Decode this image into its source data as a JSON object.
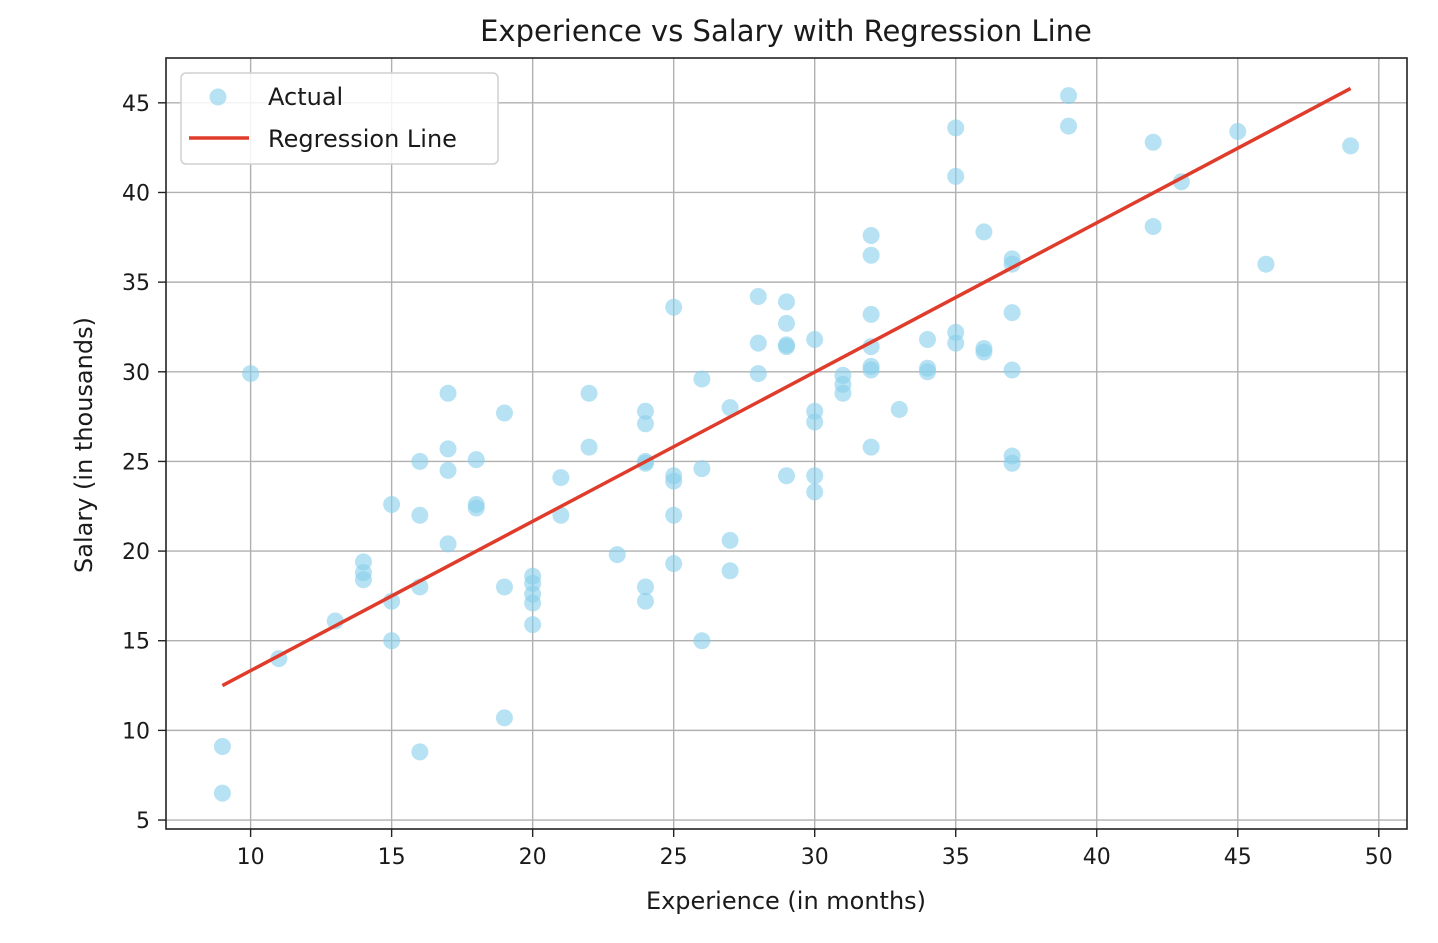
{
  "chart_data": {
    "type": "scatter",
    "title": "Experience vs Salary with Regression Line",
    "xlabel": "Experience (in months)",
    "ylabel": "Salary (in thousands)",
    "xlim": [
      7,
      51
    ],
    "ylim": [
      4.5,
      47.5
    ],
    "xticks": [
      10,
      15,
      20,
      25,
      30,
      35,
      40,
      45,
      50
    ],
    "yticks": [
      5,
      10,
      15,
      20,
      25,
      30,
      35,
      40,
      45
    ],
    "grid": true,
    "legend": {
      "placement": "top-left",
      "entries": [
        "Actual",
        "Regression Line"
      ]
    },
    "series": [
      {
        "name": "Actual",
        "kind": "scatter",
        "color": "#87ceeb",
        "points": [
          [
            9,
            9.1
          ],
          [
            9,
            6.5
          ],
          [
            10,
            29.9
          ],
          [
            11,
            14.0
          ],
          [
            13,
            16.1
          ],
          [
            14,
            19.4
          ],
          [
            14,
            18.8
          ],
          [
            14,
            18.4
          ],
          [
            15,
            22.6
          ],
          [
            15,
            17.2
          ],
          [
            15,
            15.0
          ],
          [
            16,
            25.0
          ],
          [
            16,
            22.0
          ],
          [
            16,
            18.0
          ],
          [
            16,
            8.8
          ],
          [
            17,
            28.8
          ],
          [
            17,
            25.7
          ],
          [
            17,
            24.5
          ],
          [
            17,
            20.4
          ],
          [
            18,
            25.1
          ],
          [
            18,
            22.6
          ],
          [
            18,
            22.4
          ],
          [
            19,
            27.7
          ],
          [
            19,
            18.0
          ],
          [
            19,
            10.7
          ],
          [
            20,
            18.6
          ],
          [
            20,
            18.2
          ],
          [
            20,
            17.6
          ],
          [
            20,
            17.1
          ],
          [
            20,
            15.9
          ],
          [
            21,
            24.1
          ],
          [
            21,
            22.0
          ],
          [
            22,
            28.8
          ],
          [
            22,
            25.8
          ],
          [
            23,
            19.8
          ],
          [
            24,
            27.8
          ],
          [
            24,
            27.1
          ],
          [
            24,
            25.0
          ],
          [
            24,
            24.9
          ],
          [
            24,
            18.0
          ],
          [
            24,
            17.2
          ],
          [
            25,
            33.6
          ],
          [
            25,
            24.2
          ],
          [
            25,
            23.9
          ],
          [
            25,
            22.0
          ],
          [
            25,
            19.3
          ],
          [
            26,
            29.6
          ],
          [
            26,
            24.6
          ],
          [
            26,
            15.0
          ],
          [
            27,
            28.0
          ],
          [
            27,
            20.6
          ],
          [
            27,
            18.9
          ],
          [
            28,
            34.2
          ],
          [
            28,
            31.6
          ],
          [
            28,
            29.9
          ],
          [
            29,
            33.9
          ],
          [
            29,
            32.7
          ],
          [
            29,
            31.5
          ],
          [
            29,
            31.4
          ],
          [
            29,
            24.2
          ],
          [
            30,
            31.8
          ],
          [
            30,
            27.8
          ],
          [
            30,
            27.2
          ],
          [
            30,
            24.2
          ],
          [
            30,
            23.3
          ],
          [
            31,
            29.8
          ],
          [
            31,
            29.3
          ],
          [
            31,
            28.8
          ],
          [
            32,
            37.6
          ],
          [
            32,
            36.5
          ],
          [
            32,
            33.2
          ],
          [
            32,
            31.4
          ],
          [
            32,
            30.3
          ],
          [
            32,
            30.1
          ],
          [
            32,
            25.8
          ],
          [
            33,
            27.9
          ],
          [
            34,
            31.8
          ],
          [
            34,
            30.2
          ],
          [
            34,
            30.0
          ],
          [
            35,
            43.6
          ],
          [
            35,
            40.9
          ],
          [
            35,
            32.2
          ],
          [
            35,
            31.6
          ],
          [
            36,
            37.8
          ],
          [
            36,
            31.3
          ],
          [
            36,
            31.1
          ],
          [
            37,
            36.3
          ],
          [
            37,
            36.0
          ],
          [
            37,
            33.3
          ],
          [
            37,
            30.1
          ],
          [
            37,
            25.3
          ],
          [
            37,
            24.9
          ],
          [
            39,
            45.4
          ],
          [
            39,
            43.7
          ],
          [
            42,
            42.8
          ],
          [
            42,
            38.1
          ],
          [
            43,
            40.6
          ],
          [
            45,
            43.4
          ],
          [
            46,
            36.0
          ],
          [
            49,
            42.6
          ]
        ]
      },
      {
        "name": "Regression Line",
        "kind": "line",
        "color": "#e03c2c",
        "x": [
          9,
          49
        ],
        "y": [
          12.5,
          45.8
        ]
      }
    ]
  }
}
